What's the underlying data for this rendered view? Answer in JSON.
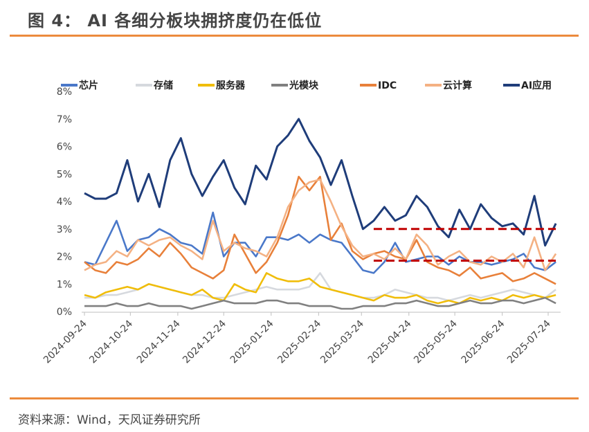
{
  "title": "图 4： AI 各细分板块拥挤度仍在低位",
  "source": "资料来源：Wind，天风证券研究所",
  "chart_data": {
    "type": "line",
    "title": "",
    "xlabel": "",
    "ylabel": "",
    "ylim": [
      0,
      8
    ],
    "yticks": [
      "0%",
      "1%",
      "2%",
      "3%",
      "4%",
      "5%",
      "6%",
      "7%",
      "8%"
    ],
    "xticks": [
      "2024-09-24",
      "2024-10-24",
      "2024-11-24",
      "2024-12-24",
      "2025-01-24",
      "2025-02-24",
      "2025-03-24",
      "2025-04-24",
      "2025-05-24",
      "2025-06-24",
      "2025-07-24"
    ],
    "legend_position": "top",
    "grid": false,
    "x": [
      "2024-09-24",
      "2024-10-01",
      "2024-10-08",
      "2024-10-15",
      "2024-10-22",
      "2024-10-29",
      "2024-11-05",
      "2024-11-12",
      "2024-11-19",
      "2024-11-26",
      "2024-12-03",
      "2024-12-10",
      "2024-12-17",
      "2024-12-24",
      "2024-12-31",
      "2025-01-07",
      "2025-01-14",
      "2025-01-21",
      "2025-01-28",
      "2025-02-04",
      "2025-02-11",
      "2025-02-18",
      "2025-02-25",
      "2025-03-04",
      "2025-03-11",
      "2025-03-18",
      "2025-03-25",
      "2025-04-01",
      "2025-04-08",
      "2025-04-15",
      "2025-04-22",
      "2025-04-29",
      "2025-05-06",
      "2025-05-13",
      "2025-05-20",
      "2025-05-27",
      "2025-06-03",
      "2025-06-10",
      "2025-06-17",
      "2025-06-24",
      "2025-07-01",
      "2025-07-08",
      "2025-07-15",
      "2025-07-22",
      "2025-07-29"
    ],
    "series": [
      {
        "name": "芯片",
        "color": "#4a78c9",
        "values": [
          1.8,
          1.7,
          2.5,
          3.3,
          2.2,
          2.6,
          2.7,
          3.0,
          2.8,
          2.5,
          2.4,
          2.1,
          3.6,
          2.0,
          2.5,
          2.5,
          2.0,
          2.7,
          2.7,
          2.6,
          2.8,
          2.5,
          2.8,
          2.6,
          2.5,
          2.0,
          1.5,
          1.4,
          1.8,
          2.5,
          1.8,
          1.9,
          2.0,
          2.0,
          1.7,
          2.0,
          1.8,
          1.8,
          1.7,
          1.8,
          1.9,
          2.1,
          1.6,
          1.5,
          1.8
        ]
      },
      {
        "name": "存储",
        "color": "#d6d9de",
        "values": [
          0.5,
          0.5,
          0.6,
          0.6,
          0.7,
          0.8,
          1.0,
          0.9,
          0.8,
          0.7,
          0.6,
          0.6,
          0.5,
          0.5,
          0.6,
          0.7,
          0.8,
          0.9,
          0.8,
          0.8,
          0.8,
          0.9,
          1.4,
          0.8,
          0.7,
          0.6,
          0.5,
          0.5,
          0.6,
          0.8,
          0.7,
          0.6,
          0.5,
          0.5,
          0.4,
          0.5,
          0.6,
          0.5,
          0.6,
          0.7,
          0.8,
          0.7,
          0.6,
          0.5,
          0.8
        ]
      },
      {
        "name": "服务器",
        "color": "#f0bd0a",
        "values": [
          0.6,
          0.5,
          0.7,
          0.8,
          0.9,
          0.8,
          1.0,
          0.9,
          0.8,
          0.7,
          0.6,
          0.8,
          0.5,
          0.4,
          1.0,
          0.8,
          0.7,
          1.4,
          1.2,
          1.1,
          1.1,
          1.2,
          0.9,
          0.8,
          0.7,
          0.6,
          0.5,
          0.4,
          0.6,
          0.5,
          0.5,
          0.6,
          0.4,
          0.3,
          0.4,
          0.3,
          0.5,
          0.4,
          0.5,
          0.4,
          0.6,
          0.5,
          0.6,
          0.5,
          0.6
        ]
      },
      {
        "name": "光模块",
        "color": "#808080",
        "values": [
          0.2,
          0.2,
          0.2,
          0.3,
          0.2,
          0.2,
          0.3,
          0.2,
          0.2,
          0.2,
          0.1,
          0.2,
          0.3,
          0.4,
          0.3,
          0.3,
          0.3,
          0.4,
          0.4,
          0.3,
          0.3,
          0.2,
          0.2,
          0.2,
          0.1,
          0.1,
          0.2,
          0.2,
          0.2,
          0.3,
          0.3,
          0.4,
          0.3,
          0.2,
          0.2,
          0.3,
          0.4,
          0.3,
          0.3,
          0.4,
          0.4,
          0.3,
          0.4,
          0.5,
          0.3
        ]
      },
      {
        "name": "IDC",
        "color": "#e8803a",
        "values": [
          1.8,
          1.5,
          1.4,
          1.8,
          1.7,
          1.9,
          2.3,
          2.0,
          2.5,
          2.1,
          1.6,
          1.4,
          1.2,
          1.5,
          2.8,
          2.1,
          1.4,
          1.8,
          2.5,
          3.5,
          4.9,
          4.4,
          4.9,
          2.6,
          3.2,
          2.2,
          1.9,
          2.1,
          2.2,
          2.0,
          1.9,
          2.6,
          1.8,
          1.6,
          1.5,
          1.3,
          1.6,
          1.2,
          1.3,
          1.4,
          1.1,
          1.2,
          1.4,
          1.2,
          1.0
        ]
      },
      {
        "name": "云计算",
        "color": "#f4b183",
        "values": [
          1.5,
          1.7,
          1.8,
          2.2,
          2.0,
          2.6,
          2.4,
          2.6,
          2.7,
          2.4,
          2.2,
          1.9,
          3.3,
          2.2,
          2.5,
          2.3,
          2.2,
          2.0,
          2.7,
          3.8,
          4.4,
          4.7,
          4.8,
          4.0,
          3.1,
          2.4,
          2.0,
          2.1,
          1.9,
          2.3,
          1.9,
          2.8,
          2.4,
          1.7,
          2.0,
          2.2,
          1.8,
          1.7,
          2.0,
          1.8,
          2.1,
          1.6,
          2.7,
          1.5,
          2.1
        ]
      },
      {
        "name": "AI应用",
        "color": "#1f3d7a",
        "values": [
          4.3,
          4.1,
          4.1,
          4.3,
          5.5,
          4.0,
          5.0,
          3.8,
          5.5,
          6.3,
          5.0,
          4.2,
          4.9,
          5.5,
          4.5,
          3.9,
          5.3,
          4.8,
          6.0,
          6.4,
          7.0,
          6.2,
          5.6,
          4.6,
          5.5,
          4.2,
          3.0,
          3.3,
          3.8,
          3.3,
          3.5,
          4.2,
          3.8,
          3.1,
          2.7,
          3.7,
          3.0,
          3.9,
          3.4,
          3.1,
          3.2,
          2.8,
          4.2,
          2.4,
          3.2
        ]
      }
    ],
    "reference_lines": [
      {
        "value": 3.0,
        "from": "2025-04-01",
        "to": "2025-07-29",
        "color": "#c00000",
        "style": "dashed"
      },
      {
        "value": 1.85,
        "from": "2025-04-01",
        "to": "2025-07-29",
        "color": "#c00000",
        "style": "dashed"
      }
    ]
  }
}
